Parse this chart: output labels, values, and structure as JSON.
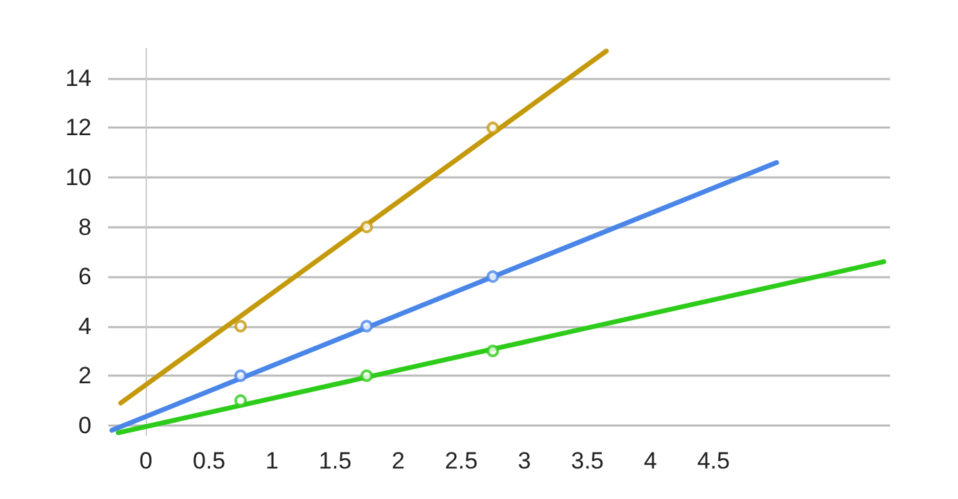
{
  "chart_data": {
    "type": "line",
    "xlim": [
      -0.3,
      5.9
    ],
    "ylim": [
      -0.4,
      15.2
    ],
    "xticks": [
      0,
      0.5,
      1,
      1.5,
      2,
      2.5,
      3,
      3.5,
      4,
      4.5
    ],
    "yticks": [
      0,
      2,
      4,
      6,
      8,
      10,
      12,
      14
    ],
    "grid": "y",
    "marker": "none",
    "line_style": "solid",
    "series": [
      {
        "color": "#c49a0c",
        "x": [
          -0.2,
          3.65
        ],
        "values": [
          0.9,
          15.1
        ]
      },
      {
        "color": "#4a86e8",
        "x": [
          -0.27,
          5.0
        ],
        "values": [
          -0.2,
          10.6
        ]
      },
      {
        "color": "#2ecc1a",
        "x": [
          -0.22,
          5.85
        ],
        "values": [
          -0.3,
          6.6
        ]
      },
      {
        "type": "scatter",
        "marker": "circle",
        "color": "#c49a0c",
        "x": [
          0.75,
          1.75,
          2.75
        ],
        "values": [
          4,
          8,
          12
        ]
      },
      {
        "type": "scatter",
        "marker": "circle",
        "color": "#4a86e8",
        "x": [
          0.75,
          1.75,
          2.75
        ],
        "values": [
          2,
          4,
          6
        ]
      },
      {
        "type": "scatter",
        "marker": "circle",
        "color": "#2ecc1a",
        "x": [
          0.75,
          1.75,
          2.75
        ],
        "values": [
          1,
          2,
          3
        ]
      }
    ]
  }
}
